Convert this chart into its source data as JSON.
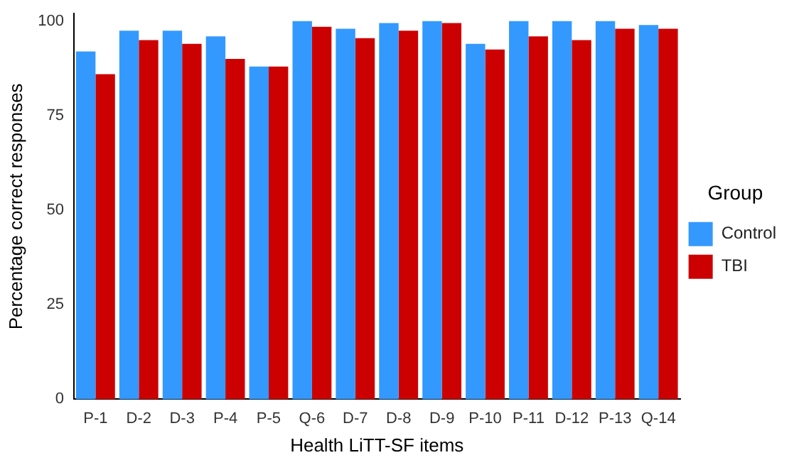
{
  "chart_data": {
    "type": "bar",
    "xlabel": "Health LiTT-SF items",
    "ylabel": "Percentage correct responses",
    "legend_title": "Group",
    "legend": "right",
    "categories": [
      "P-1",
      "D-2",
      "D-3",
      "P-4",
      "P-5",
      "Q-6",
      "D-7",
      "D-8",
      "D-9",
      "P-10",
      "P-11",
      "D-12",
      "P-13",
      "Q-14"
    ],
    "series": [
      {
        "name": "Control",
        "color": "#3399ff",
        "values": [
          92,
          97.5,
          97.5,
          96,
          88,
          100,
          98,
          99.5,
          100,
          94,
          100,
          100,
          100,
          99
        ]
      },
      {
        "name": "TBI",
        "color": "#cc0000",
        "values": [
          86,
          95,
          94,
          90,
          88,
          98.5,
          95.5,
          97.5,
          99.5,
          92.5,
          96,
          95,
          98,
          98
        ]
      }
    ],
    "ylim": [
      0,
      102
    ],
    "yticks": [
      0,
      25,
      50,
      75,
      100
    ],
    "grid": false
  }
}
